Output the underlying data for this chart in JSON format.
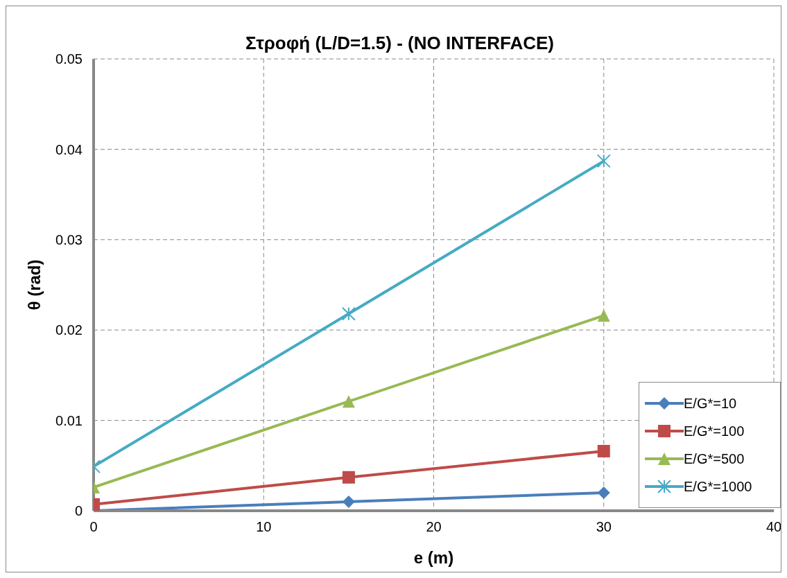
{
  "chart_data": {
    "type": "line",
    "title": "Στροφή (L/D=1.5) - (NO INTERFACE)",
    "xlabel": "e (m)",
    "ylabel": "θ (rad)",
    "x": [
      0,
      15,
      30
    ],
    "series": [
      {
        "name": "E/G*=10",
        "color": "#4a7ebb",
        "marker": "diamond",
        "values": [
          0,
          0.001,
          0.002
        ]
      },
      {
        "name": "E/G*=100",
        "color": "#be4b48",
        "marker": "square",
        "values": [
          0.0007,
          0.0037,
          0.0066
        ]
      },
      {
        "name": "E/G*=500",
        "color": "#98b954",
        "marker": "triangle",
        "values": [
          0.0026,
          0.0121,
          0.0216
        ]
      },
      {
        "name": "E/G*=1000",
        "color": "#46aac5",
        "marker": "cross",
        "values": [
          0.0049,
          0.0218,
          0.0387
        ]
      }
    ],
    "xlim": [
      0,
      40
    ],
    "xticks": [
      0,
      10,
      20,
      30,
      40
    ],
    "ylim": [
      0,
      0.05
    ],
    "yticks": [
      0,
      0.01,
      0.02,
      0.03,
      0.04,
      0.05
    ],
    "grid": true,
    "legend": "bottom right",
    "line_style": "solid"
  }
}
